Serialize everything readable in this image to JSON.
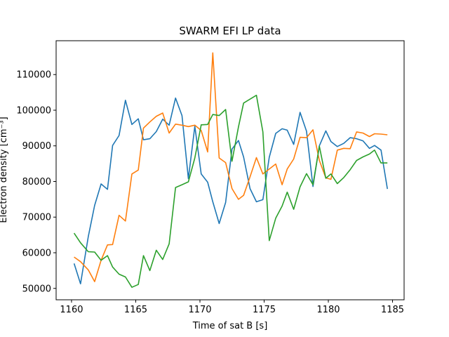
{
  "chart_data": {
    "type": "line",
    "title": "SWARM EFI LP data",
    "xlabel": "Time of sat B [s]",
    "ylabel": "Electron density [cm⁻³]",
    "xlim": [
      1158.8,
      1185.9
    ],
    "ylim": [
      46800,
      119500
    ],
    "xticks": [
      1160,
      1165,
      1170,
      1175,
      1180,
      1185
    ],
    "yticks": [
      50000,
      60000,
      70000,
      80000,
      90000,
      100000,
      110000
    ],
    "grid": false,
    "series": [
      {
        "color": "#1f77b4",
        "x": [
          1160.2,
          1160.7,
          1161.3,
          1161.8,
          1162.3,
          1162.8,
          1163.2,
          1163.7,
          1164.2,
          1164.7,
          1165.2,
          1165.6,
          1166.1,
          1166.6,
          1167.1,
          1167.6,
          1168.1,
          1168.6,
          1169.1,
          1169.6,
          1170.1,
          1170.6,
          1171.0,
          1171.5,
          1172.0,
          1172.5,
          1173.0,
          1173.4,
          1173.9,
          1174.4,
          1174.9,
          1175.4,
          1175.9,
          1176.4,
          1176.8,
          1177.3,
          1177.8,
          1178.3,
          1178.8,
          1179.3,
          1179.8,
          1180.2,
          1180.7,
          1181.2,
          1181.7,
          1182.2,
          1182.7,
          1183.2,
          1183.6,
          1184.1,
          1184.6
        ],
        "y": [
          57000,
          51300,
          64500,
          73300,
          79300,
          77800,
          90100,
          92900,
          102800,
          96000,
          97600,
          91700,
          92000,
          94000,
          97500,
          95800,
          103400,
          98500,
          80800,
          95500,
          82100,
          79800,
          74300,
          68200,
          74100,
          89100,
          91500,
          86900,
          78000,
          74300,
          74900,
          86800,
          93500,
          94800,
          94400,
          90400,
          99400,
          94100,
          78600,
          90000,
          94200,
          91200,
          89800,
          90700,
          92300,
          92000,
          91400,
          89300,
          90100,
          88800,
          77900
        ]
      },
      {
        "color": "#ff7f0e",
        "x": [
          1160.2,
          1160.7,
          1161.3,
          1161.8,
          1162.3,
          1162.8,
          1163.2,
          1163.7,
          1164.2,
          1164.7,
          1165.2,
          1165.6,
          1166.1,
          1166.6,
          1167.1,
          1167.6,
          1168.1,
          1168.6,
          1169.1,
          1169.6,
          1170.1,
          1170.6,
          1171.0,
          1171.5,
          1172.0,
          1172.5,
          1173.0,
          1173.4,
          1173.9,
          1174.4,
          1174.9,
          1175.4,
          1175.9,
          1176.4,
          1176.8,
          1177.3,
          1177.8,
          1178.3,
          1178.8,
          1179.3,
          1179.8,
          1180.2,
          1180.7,
          1181.2,
          1181.7,
          1182.2,
          1182.7,
          1183.2,
          1183.6,
          1184.1,
          1184.6
        ],
        "y": [
          58800,
          57500,
          55200,
          51900,
          57900,
          62200,
          62300,
          70500,
          68900,
          82100,
          83200,
          95000,
          96700,
          98300,
          99200,
          93600,
          96100,
          95800,
          95400,
          95800,
          94300,
          88300,
          116100,
          86600,
          85300,
          78000,
          75000,
          76100,
          81300,
          86700,
          82100,
          83500,
          84900,
          79100,
          83500,
          86300,
          92400,
          92300,
          94500,
          85900,
          81000,
          80600,
          88800,
          89300,
          89200,
          93900,
          93600,
          92600,
          93400,
          93300,
          93100
        ]
      },
      {
        "color": "#2ca02c",
        "x": [
          1160.2,
          1160.7,
          1161.3,
          1161.8,
          1162.3,
          1162.8,
          1163.2,
          1163.7,
          1164.2,
          1164.7,
          1165.2,
          1165.6,
          1166.1,
          1166.6,
          1167.1,
          1167.6,
          1168.1,
          1168.6,
          1169.1,
          1169.6,
          1170.1,
          1170.6,
          1171.0,
          1171.5,
          1172.0,
          1172.5,
          1173.0,
          1173.4,
          1173.9,
          1174.4,
          1174.9,
          1175.4,
          1175.9,
          1176.4,
          1176.8,
          1177.3,
          1177.8,
          1178.3,
          1178.8,
          1179.3,
          1179.8,
          1180.2,
          1180.7,
          1181.2,
          1181.7,
          1182.2,
          1182.7,
          1183.2,
          1183.6,
          1184.1,
          1184.6
        ],
        "y": [
          65500,
          62800,
          60300,
          60200,
          57900,
          59200,
          56000,
          54000,
          53200,
          50300,
          51100,
          59200,
          55000,
          60700,
          58100,
          62500,
          78300,
          79100,
          79900,
          86600,
          95900,
          96000,
          98800,
          98500,
          100200,
          85700,
          95300,
          102000,
          103100,
          104200,
          93900,
          63400,
          69700,
          73100,
          77000,
          72200,
          78500,
          82200,
          79100,
          89900,
          80900,
          82100,
          79400,
          81100,
          83300,
          85900,
          86900,
          87700,
          88800,
          85200,
          85200
        ]
      }
    ]
  }
}
